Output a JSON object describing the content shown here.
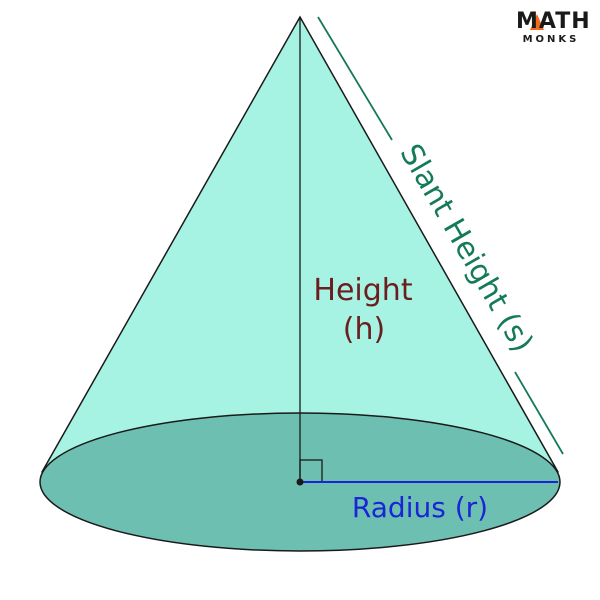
{
  "brand": {
    "name": "MATH",
    "sub": "MONKS"
  },
  "labels": {
    "height": "Height",
    "height_symbol": "(h)",
    "slant": "Slant Height (s)",
    "radius": "Radius (r)"
  },
  "colors": {
    "cone_side": "#a6f3e4",
    "cone_base": "#6dc0b1",
    "outline": "#1a1a1a",
    "height_text": "#6b1e1e",
    "slant_text": "#157a5a",
    "radius": "#1a25d6",
    "logo_accent": "#f26a1b"
  }
}
